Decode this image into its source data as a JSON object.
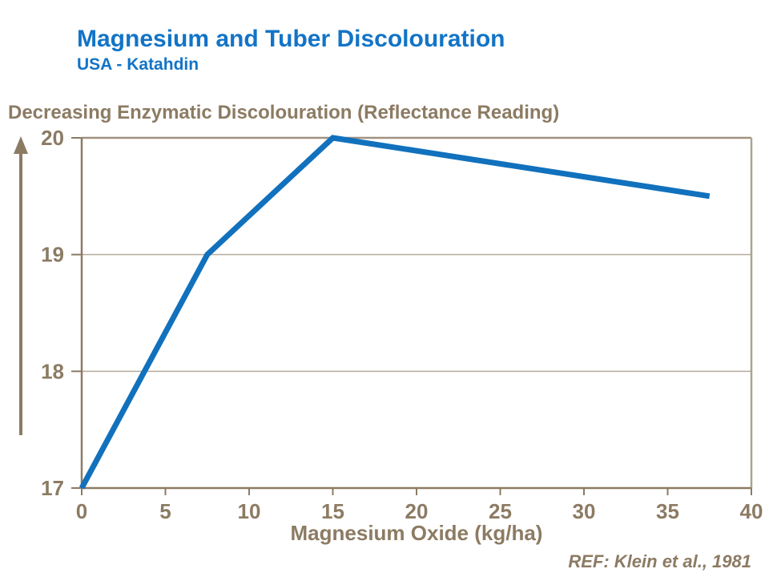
{
  "page": {
    "title": "Magnesium and Tuber Discolouration",
    "subtitle": "USA - Katahdin",
    "reference": "REF: Klein et al., 1981"
  },
  "icons": {
    "y_axis_direction_arrow": "arrow-up"
  },
  "colors": {
    "title_blue": "#1274C7",
    "line_blue": "#1171BD",
    "axis_taupe": "#8C7B63",
    "gridline_light": "#B5AB9D",
    "top_rule": "#A09180",
    "plot_right_border": "#ACA294"
  },
  "chart_data": {
    "type": "line",
    "title": "Magnesium and Tuber Discolouration",
    "subtitle": "USA - Katahdin",
    "xlabel": "Magnesium Oxide (kg/ha)",
    "ylabel": "Decreasing Enzymatic Discolouration (Reflectance Reading)",
    "x": [
      0,
      7.5,
      15,
      37.5
    ],
    "y": [
      17.0,
      19.0,
      20.0,
      19.5
    ],
    "xlim": [
      0,
      40
    ],
    "ylim": [
      17,
      20
    ],
    "x_ticks": [
      0,
      5,
      10,
      15,
      20,
      25,
      30,
      35,
      40
    ],
    "y_ticks": [
      17,
      18,
      19,
      20
    ],
    "grid": "horizontal",
    "legend": "none",
    "annotation": "REF: Klein et al., 1981"
  }
}
